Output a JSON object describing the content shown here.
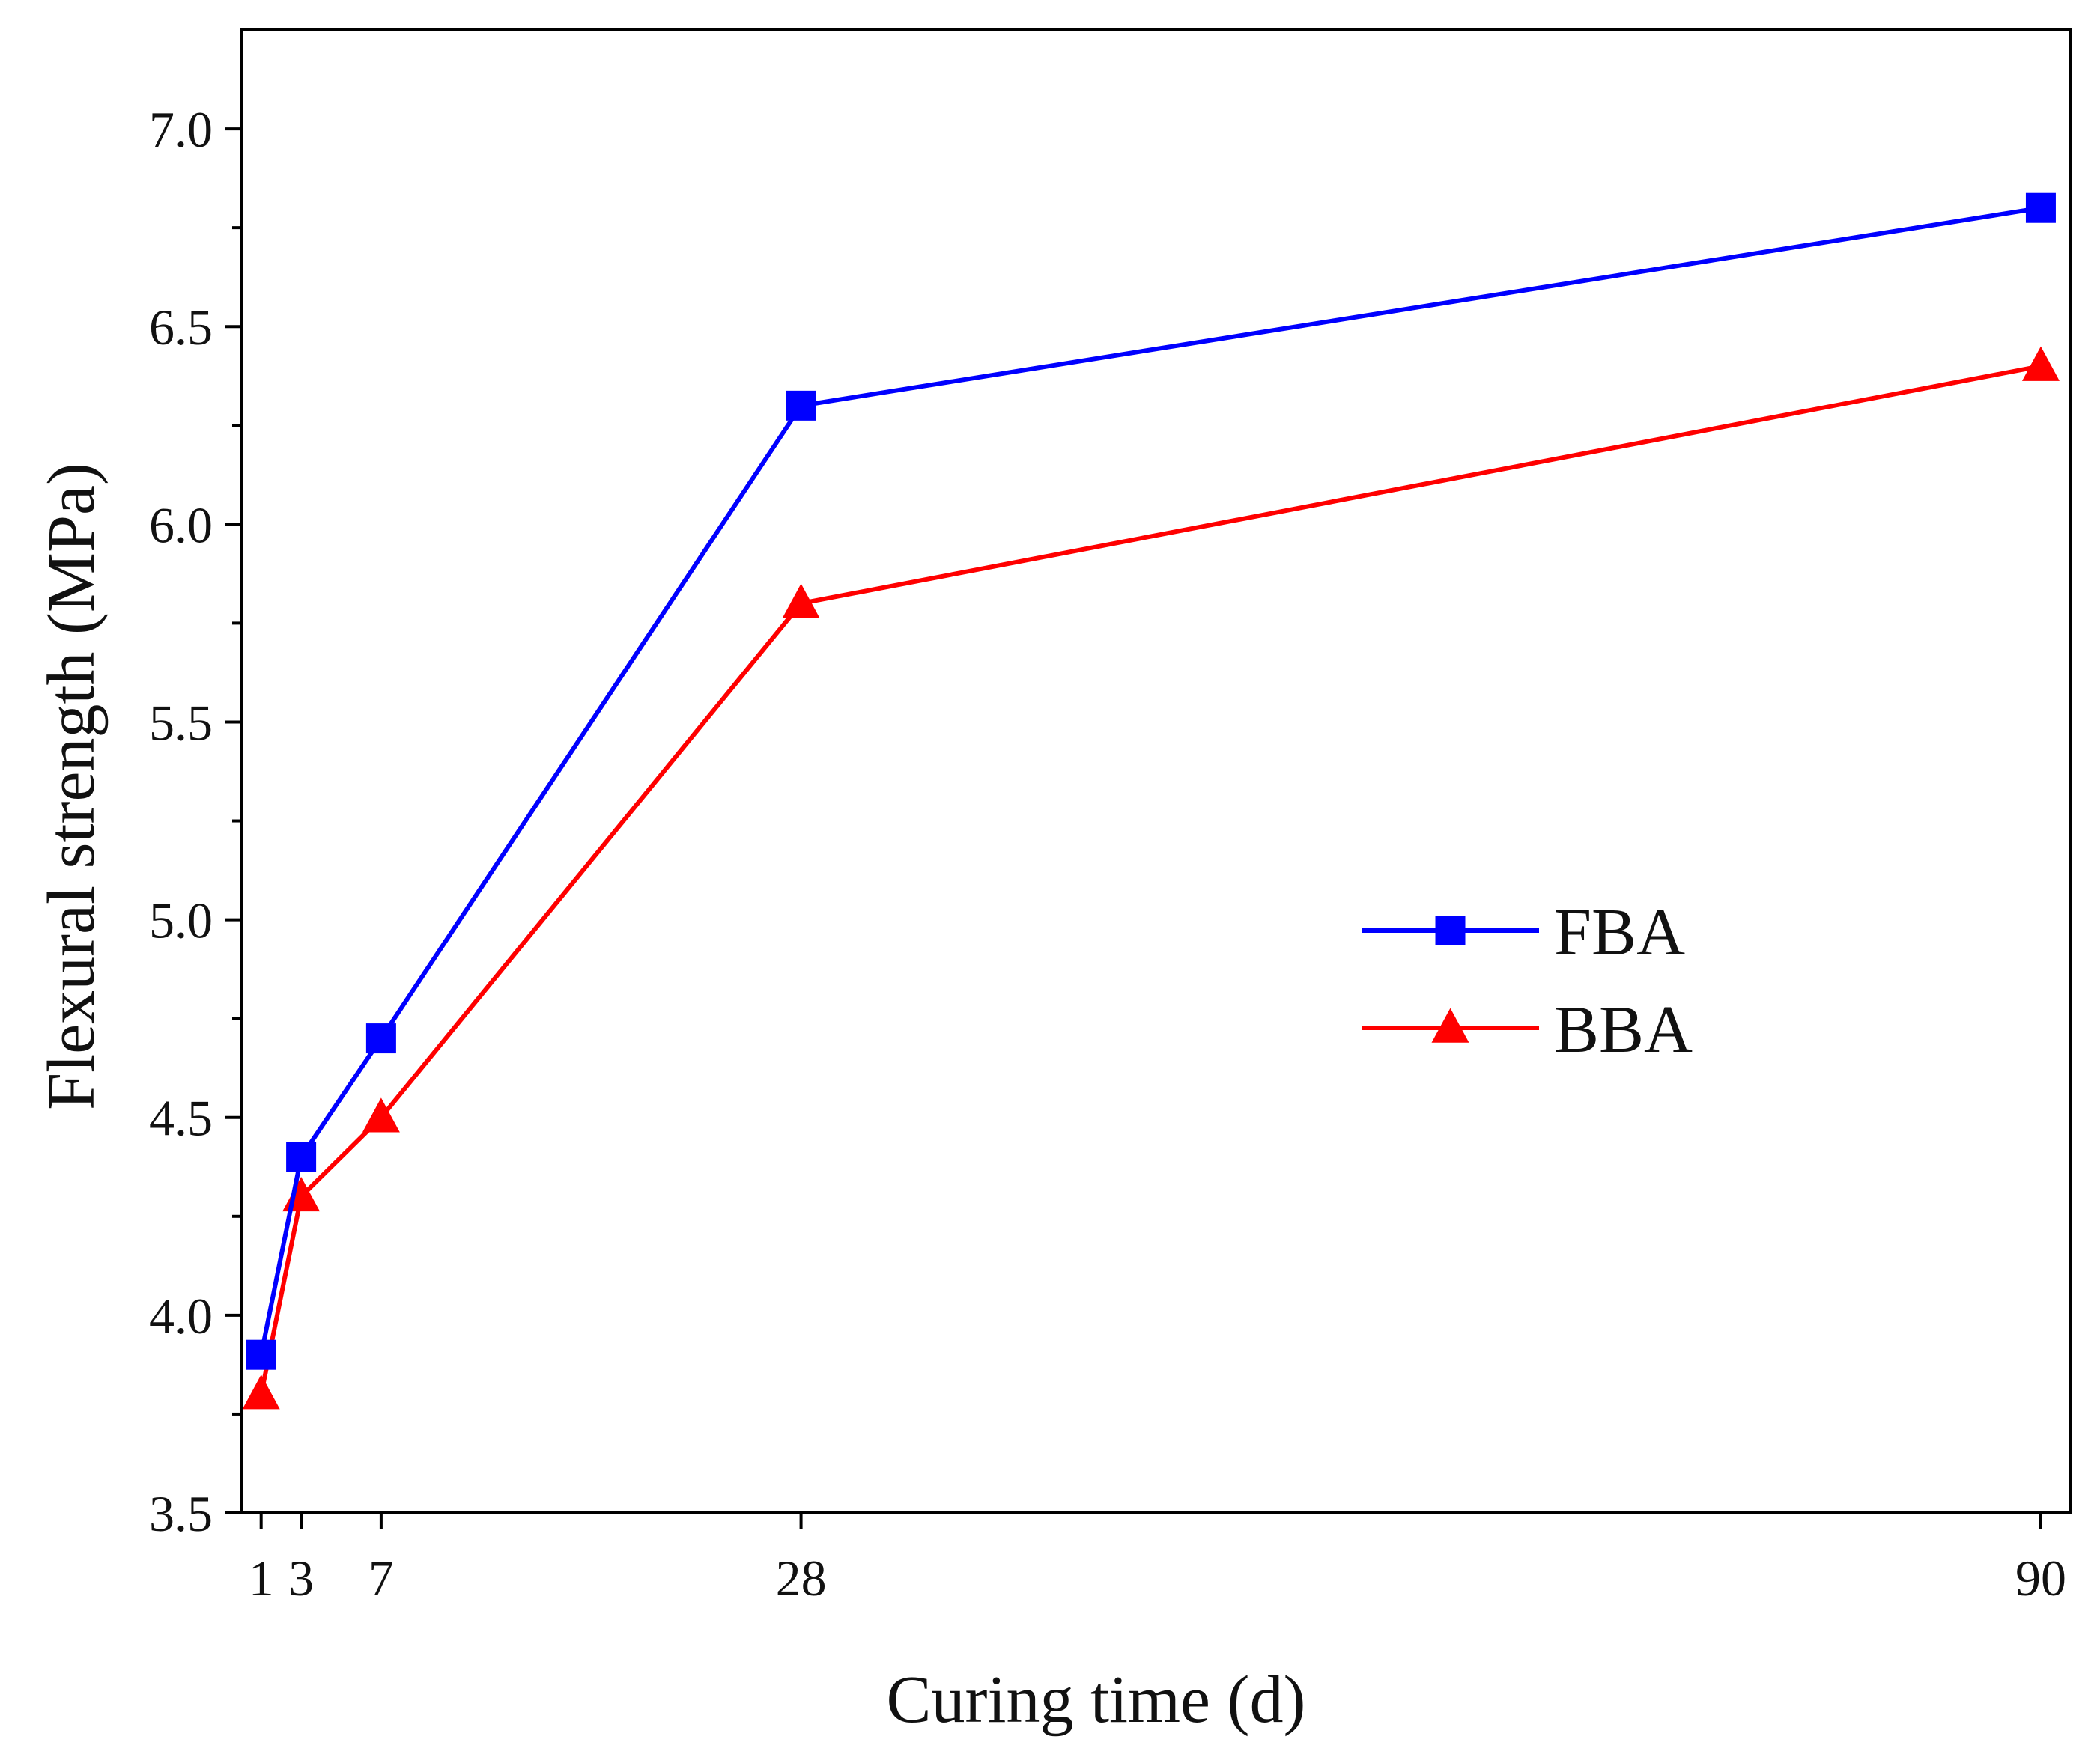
{
  "chart_data": {
    "type": "line",
    "title": "",
    "xlabel": "Curing time (d)",
    "ylabel": "Flexural strength (MPa)",
    "x": [
      1,
      3,
      7,
      28,
      90
    ],
    "xticks": [
      1,
      3,
      7,
      28,
      90
    ],
    "xtick_labels": [
      "1",
      "3",
      "7",
      "28",
      "90"
    ],
    "xlim": [
      0,
      91.5
    ],
    "ylim": [
      3.5,
      7.25
    ],
    "yticks": [
      3.5,
      4.0,
      4.5,
      5.0,
      5.5,
      6.0,
      6.5,
      7.0
    ],
    "ytick_labels": [
      "3.5",
      "4.0",
      "4.5",
      "5.0",
      "5.5",
      "6.0",
      "6.5",
      "7.0"
    ],
    "grid": false,
    "legend_position": "center-right",
    "series": [
      {
        "name": "FBA",
        "values": [
          3.9,
          4.4,
          4.7,
          6.3,
          6.8
        ],
        "color": "#0000ff",
        "marker": "square"
      },
      {
        "name": "BBA",
        "values": [
          3.8,
          4.3,
          4.5,
          5.8,
          6.4
        ],
        "color": "#ff0000",
        "marker": "triangle"
      }
    ]
  }
}
